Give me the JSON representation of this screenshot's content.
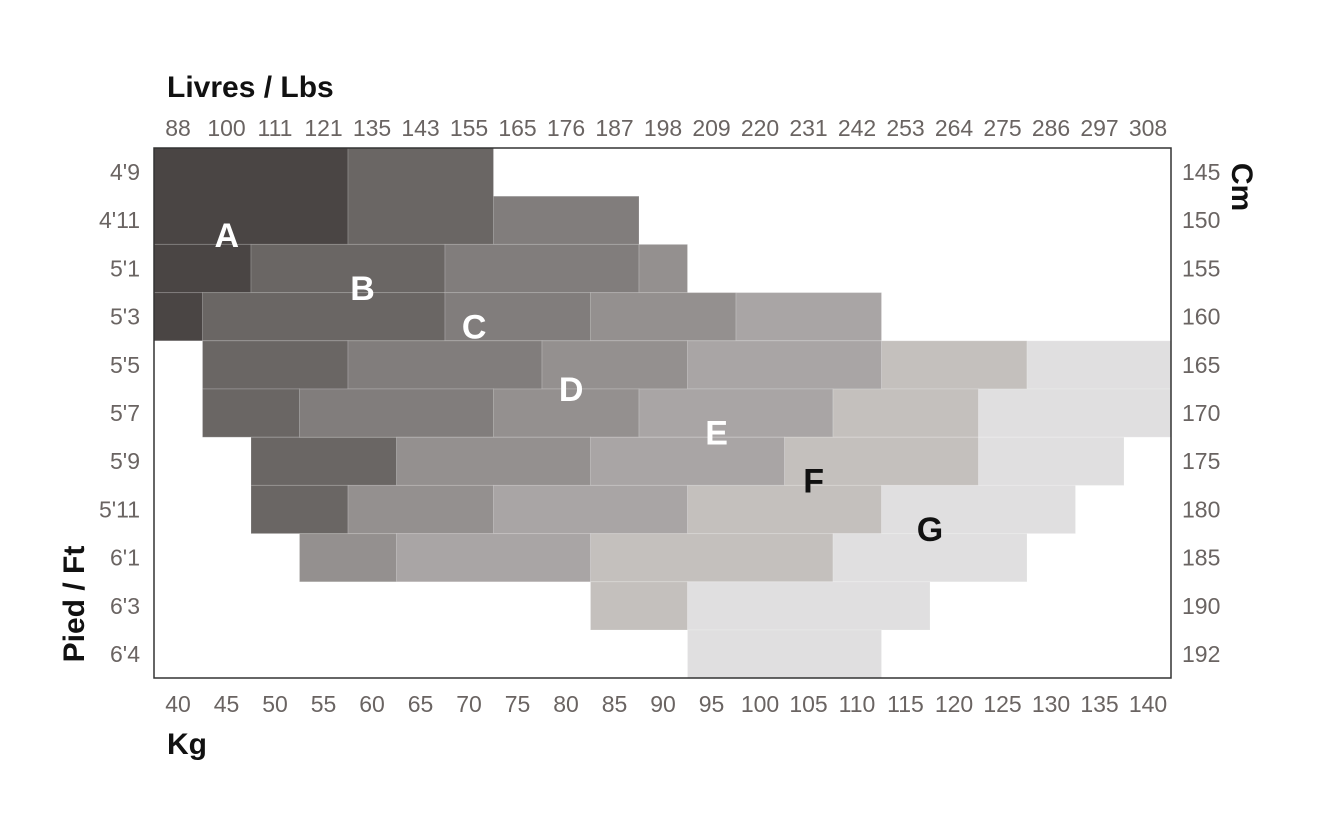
{
  "chart_data": {
    "type": "heatmap",
    "title": "",
    "axes": {
      "top": {
        "title": "Livres / Lbs",
        "ticks": [
          "88",
          "100",
          "111",
          "121",
          "135",
          "143",
          "155",
          "165",
          "176",
          "187",
          "198",
          "209",
          "220",
          "231",
          "242",
          "253",
          "264",
          "275",
          "286",
          "297",
          "308"
        ]
      },
      "bottom": {
        "title": "Kg",
        "ticks": [
          "40",
          "45",
          "50",
          "55",
          "60",
          "65",
          "70",
          "75",
          "80",
          "85",
          "90",
          "95",
          "100",
          "105",
          "110",
          "115",
          "120",
          "125",
          "130",
          "135",
          "140"
        ]
      },
      "left": {
        "title": "Pied / Ft",
        "ticks": [
          "4'9",
          "4'11",
          "5'1",
          "5'3",
          "5'5",
          "5'7",
          "5'9",
          "5'11",
          "6'1",
          "6'3",
          "6'4"
        ]
      },
      "right": {
        "title": "Cm",
        "ticks": [
          "145",
          "150",
          "155",
          "160",
          "165",
          "170",
          "175",
          "180",
          "185",
          "190",
          "192"
        ]
      }
    },
    "sizes": [
      {
        "label": "A",
        "color": "#4a4544",
        "text_color": "#ffffff",
        "label_at": {
          "kg": 47.5,
          "cm": 151.5
        }
      },
      {
        "label": "B",
        "color": "#6a6664",
        "text_color": "#ffffff",
        "label_at": {
          "kg": 61.5,
          "cm": 157
        }
      },
      {
        "label": "C",
        "color": "#817d7c",
        "text_color": "#ffffff",
        "label_at": {
          "kg": 73,
          "cm": 161
        }
      },
      {
        "label": "D",
        "color": "#94908f",
        "text_color": "#ffffff",
        "label_at": {
          "kg": 83,
          "cm": 167.5
        }
      },
      {
        "label": "E",
        "color": "#a9a5a5",
        "text_color": "#ffffff",
        "label_at": {
          "kg": 98,
          "cm": 172
        }
      },
      {
        "label": "F",
        "color": "#c4c0bd",
        "text_color": "#111111",
        "label_at": {
          "kg": 108,
          "cm": 177
        }
      },
      {
        "label": "G",
        "color": "#e0dfe0",
        "text_color": "#111111",
        "label_at": {
          "kg": 120,
          "cm": 182
        }
      }
    ],
    "cells": [
      {
        "size": "A",
        "kg_start": 40,
        "kg_end": 60,
        "row_start": 0,
        "row_end": 2
      },
      {
        "size": "A",
        "kg_start": 40,
        "kg_end": 50,
        "row_start": 2,
        "row_end": 3
      },
      {
        "size": "A",
        "kg_start": 40,
        "kg_end": 45,
        "row_start": 3,
        "row_end": 4
      },
      {
        "size": "B",
        "kg_start": 60,
        "kg_end": 75,
        "row_start": 0,
        "row_end": 2
      },
      {
        "size": "B",
        "kg_start": 50,
        "kg_end": 70,
        "row_start": 2,
        "row_end": 3
      },
      {
        "size": "B",
        "kg_start": 45,
        "kg_end": 70,
        "row_start": 3,
        "row_end": 4
      },
      {
        "size": "B",
        "kg_start": 45,
        "kg_end": 60,
        "row_start": 4,
        "row_end": 5
      },
      {
        "size": "B",
        "kg_start": 45,
        "kg_end": 55,
        "row_start": 5,
        "row_end": 6
      },
      {
        "size": "B",
        "kg_start": 50,
        "kg_end": 65,
        "row_start": 6,
        "row_end": 7
      },
      {
        "size": "B",
        "kg_start": 50,
        "kg_end": 60,
        "row_start": 7,
        "row_end": 8
      },
      {
        "size": "C",
        "kg_start": 75,
        "kg_end": 90,
        "row_start": 1,
        "row_end": 2
      },
      {
        "size": "C",
        "kg_start": 70,
        "kg_end": 90,
        "row_start": 2,
        "row_end": 3
      },
      {
        "size": "C",
        "kg_start": 70,
        "kg_end": 85,
        "row_start": 3,
        "row_end": 4
      },
      {
        "size": "C",
        "kg_start": 60,
        "kg_end": 80,
        "row_start": 4,
        "row_end": 5
      },
      {
        "size": "C",
        "kg_start": 55,
        "kg_end": 75,
        "row_start": 5,
        "row_end": 6
      },
      {
        "size": "D",
        "kg_start": 90,
        "kg_end": 95,
        "row_start": 2,
        "row_end": 3
      },
      {
        "size": "D",
        "kg_start": 85,
        "kg_end": 100,
        "row_start": 3,
        "row_end": 4
      },
      {
        "size": "D",
        "kg_start": 80,
        "kg_end": 95,
        "row_start": 4,
        "row_end": 5
      },
      {
        "size": "D",
        "kg_start": 75,
        "kg_end": 90,
        "row_start": 5,
        "row_end": 6
      },
      {
        "size": "D",
        "kg_start": 65,
        "kg_end": 85,
        "row_start": 6,
        "row_end": 7
      },
      {
        "size": "D",
        "kg_start": 60,
        "kg_end": 75,
        "row_start": 7,
        "row_end": 8
      },
      {
        "size": "D",
        "kg_start": 55,
        "kg_end": 65,
        "row_start": 8,
        "row_end": 9
      },
      {
        "size": "E",
        "kg_start": 100,
        "kg_end": 115,
        "row_start": 3,
        "row_end": 4
      },
      {
        "size": "E",
        "kg_start": 95,
        "kg_end": 115,
        "row_start": 4,
        "row_end": 5
      },
      {
        "size": "E",
        "kg_start": 90,
        "kg_end": 110,
        "row_start": 5,
        "row_end": 6
      },
      {
        "size": "E",
        "kg_start": 85,
        "kg_end": 105,
        "row_start": 6,
        "row_end": 7
      },
      {
        "size": "E",
        "kg_start": 75,
        "kg_end": 95,
        "row_start": 7,
        "row_end": 8
      },
      {
        "size": "E",
        "kg_start": 65,
        "kg_end": 85,
        "row_start": 8,
        "row_end": 9
      },
      {
        "size": "F",
        "kg_start": 115,
        "kg_end": 130,
        "row_start": 4,
        "row_end": 5
      },
      {
        "size": "F",
        "kg_start": 110,
        "kg_end": 125,
        "row_start": 5,
        "row_end": 6
      },
      {
        "size": "F",
        "kg_start": 105,
        "kg_end": 125,
        "row_start": 6,
        "row_end": 7
      },
      {
        "size": "F",
        "kg_start": 95,
        "kg_end": 115,
        "row_start": 7,
        "row_end": 8
      },
      {
        "size": "F",
        "kg_start": 85,
        "kg_end": 110,
        "row_start": 8,
        "row_end": 9
      },
      {
        "size": "F",
        "kg_start": 85,
        "kg_end": 95,
        "row_start": 9,
        "row_end": 10
      },
      {
        "size": "G",
        "kg_start": 130,
        "kg_end": 145,
        "row_start": 4,
        "row_end": 5
      },
      {
        "size": "G",
        "kg_start": 125,
        "kg_end": 145,
        "row_start": 5,
        "row_end": 6
      },
      {
        "size": "G",
        "kg_start": 125,
        "kg_end": 140,
        "row_start": 6,
        "row_end": 7
      },
      {
        "size": "G",
        "kg_start": 115,
        "kg_end": 135,
        "row_start": 7,
        "row_end": 8
      },
      {
        "size": "G",
        "kg_start": 110,
        "kg_end": 130,
        "row_start": 8,
        "row_end": 9
      },
      {
        "size": "G",
        "kg_start": 95,
        "kg_end": 120,
        "row_start": 9,
        "row_end": 10
      },
      {
        "size": "G",
        "kg_start": 95,
        "kg_end": 115,
        "row_start": 10,
        "row_end": 11
      }
    ]
  }
}
